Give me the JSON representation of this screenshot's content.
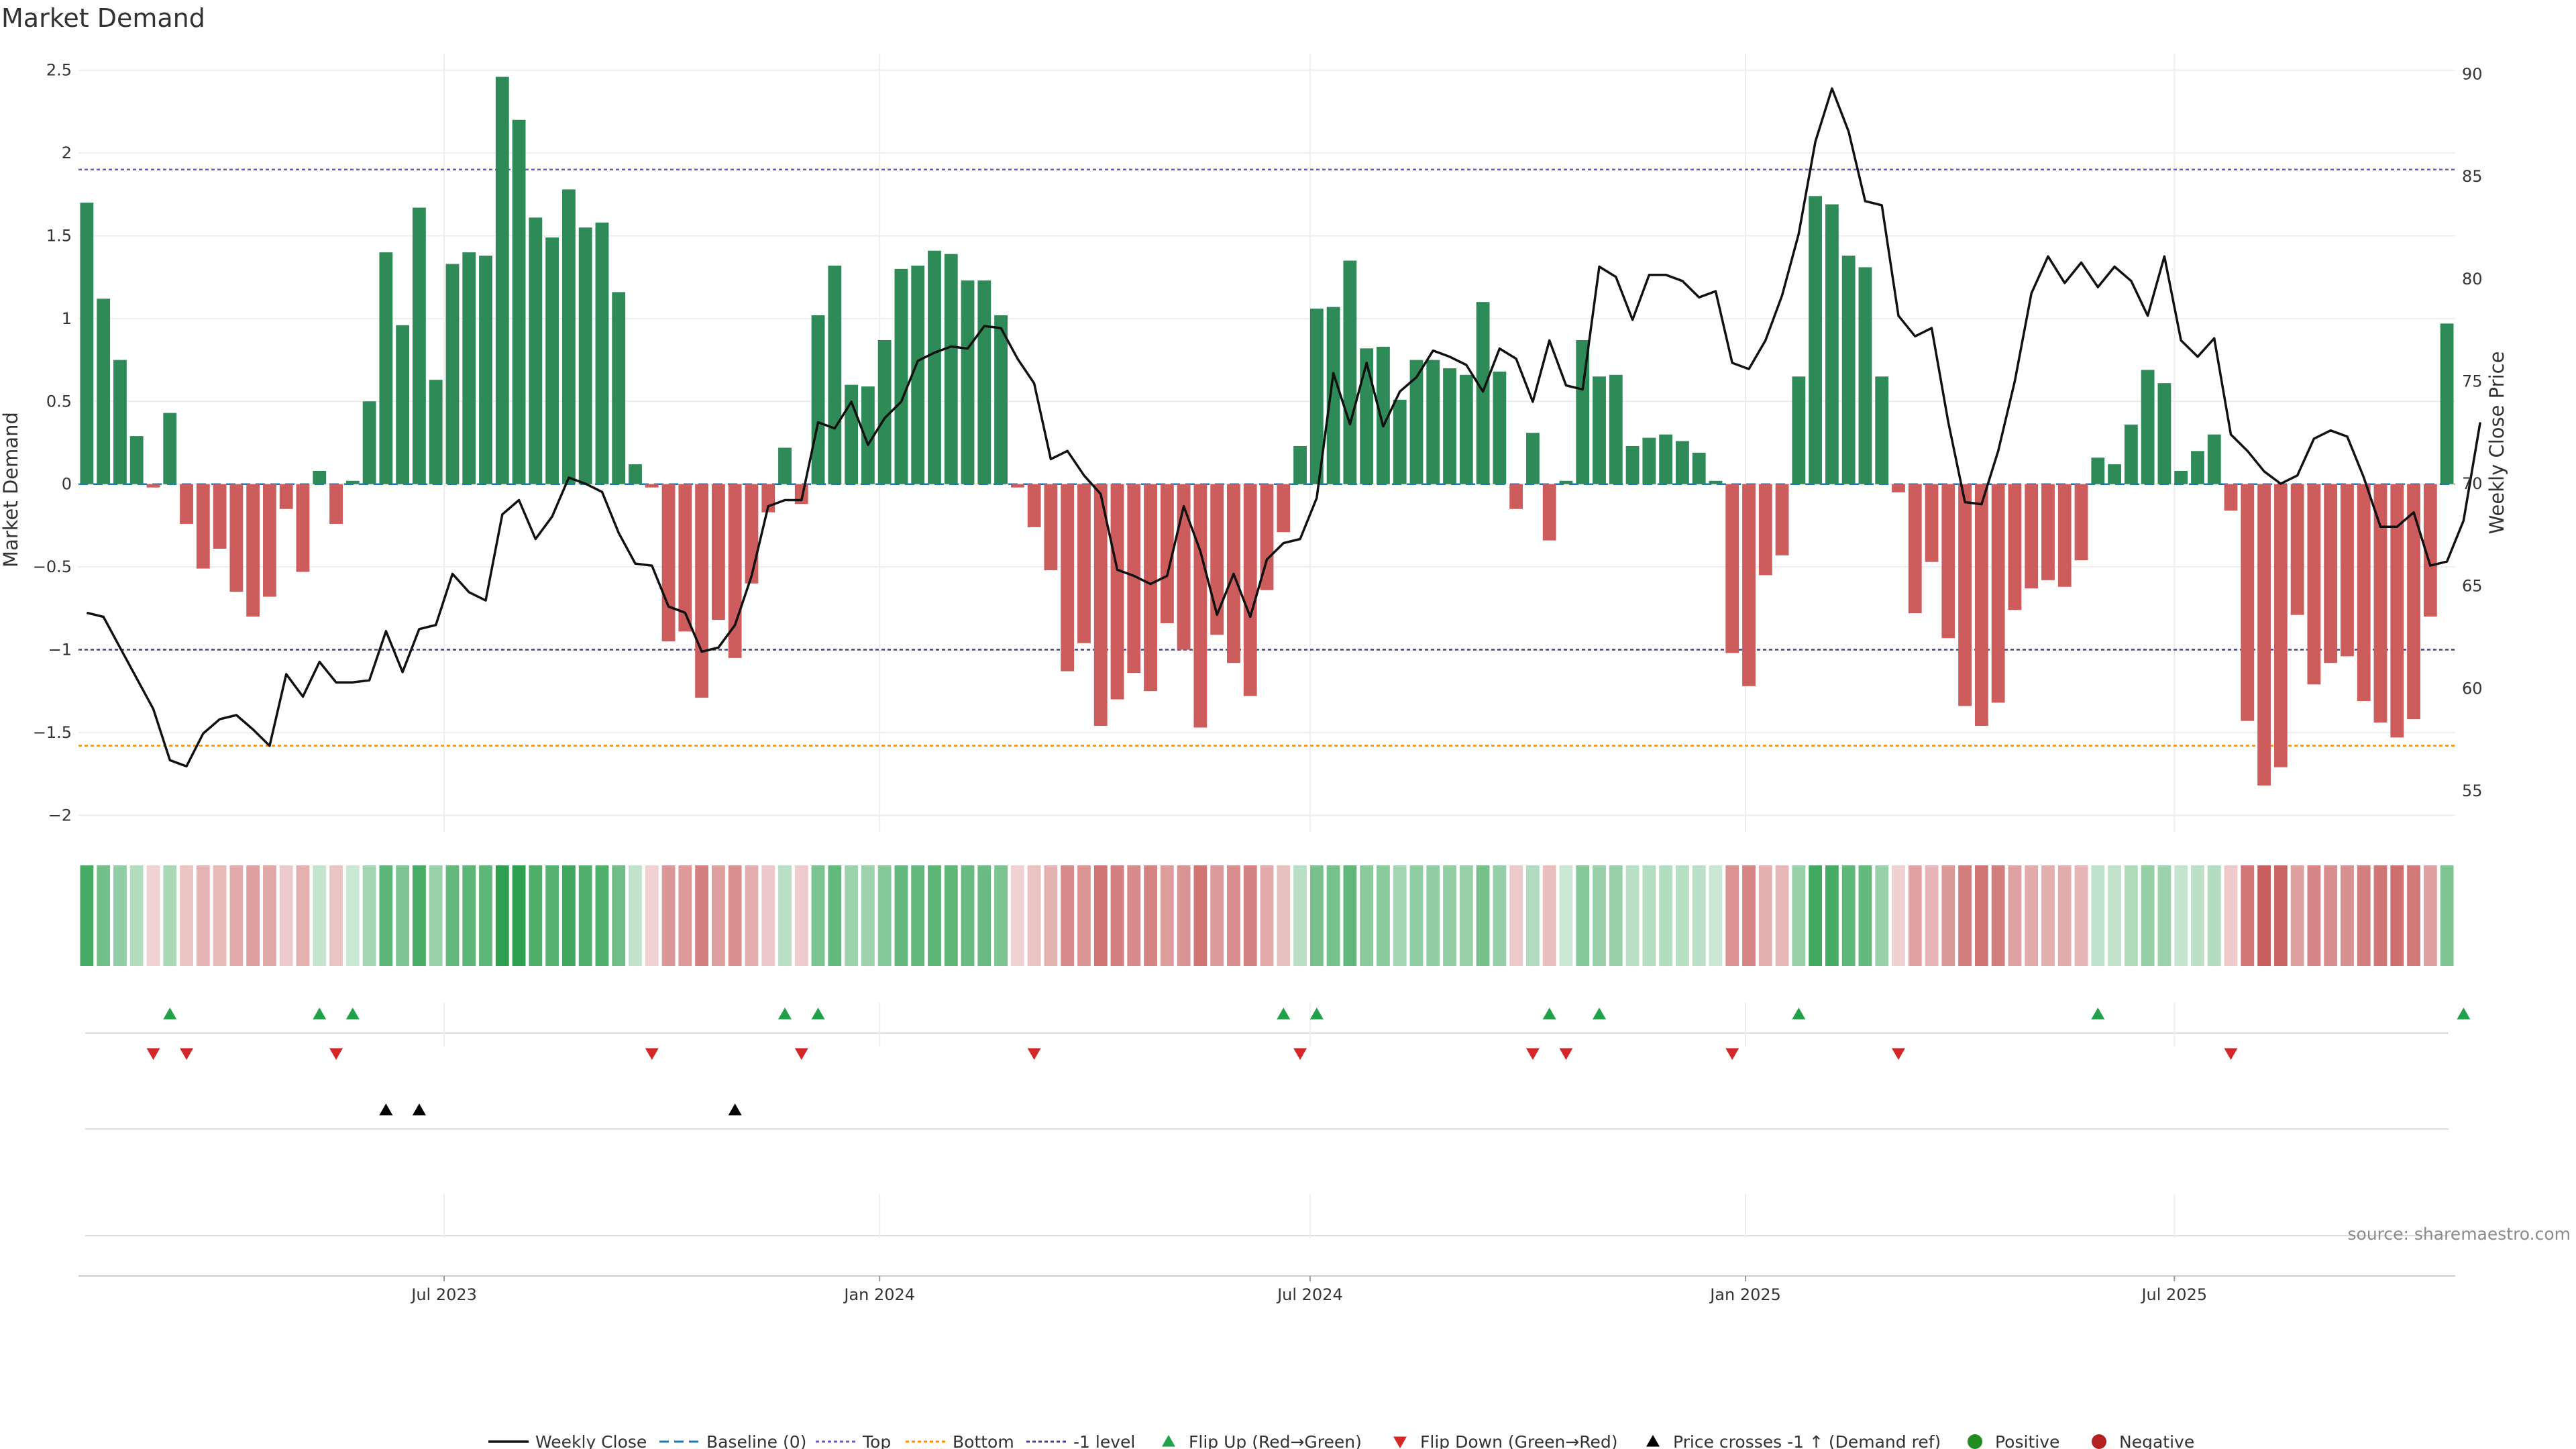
{
  "chart_data": {
    "type": "bar",
    "title": "Market Demand",
    "ylabel_left": "Market Demand",
    "ylabel_right": "Weekly Close Price",
    "ylim_left": [
      -2.1,
      2.6
    ],
    "ylim_right": [
      53,
      91
    ],
    "yticks_left": [
      2.5,
      2,
      1.5,
      1,
      0.5,
      0,
      -0.5,
      -1,
      -1.5,
      -2
    ],
    "ytick_labels_left": [
      "2.5",
      "2",
      "1.5",
      "1",
      "0.5",
      "0",
      "−0.5",
      "−1",
      "−1.5",
      "−2"
    ],
    "yticks_right": [
      90,
      85,
      80,
      75,
      70,
      65,
      60,
      55
    ],
    "ytick_labels_right": [
      "90",
      "85",
      "80",
      "75",
      "70",
      "65",
      "60",
      "55"
    ],
    "x_tick_labels": [
      {
        "label": "Jul 2023",
        "index": 21.5
      },
      {
        "label": "Jan 2024",
        "index": 47.7
      },
      {
        "label": "Jul 2024",
        "index": 73.6
      },
      {
        "label": "Jan 2025",
        "index": 99.8
      },
      {
        "label": "Jul 2025",
        "index": 125.6
      }
    ],
    "reference_lines": {
      "baseline": 0,
      "top": 1.9,
      "bottom": -1.58,
      "minus_one": -1.0
    },
    "demand": [
      1.7,
      1.12,
      0.75,
      0.29,
      -0.02,
      0.43,
      -0.24,
      -0.51,
      -0.39,
      -0.65,
      -0.8,
      -0.68,
      -0.15,
      -0.53,
      0.08,
      -0.24,
      0.02,
      0.5,
      1.4,
      0.96,
      1.67,
      0.63,
      1.33,
      1.4,
      1.38,
      2.46,
      2.2,
      1.61,
      1.49,
      1.78,
      1.55,
      1.58,
      1.16,
      0.12,
      -0.02,
      -0.95,
      -0.89,
      -1.29,
      -0.82,
      -1.05,
      -0.6,
      -0.17,
      0.22,
      -0.12,
      1.02,
      1.32,
      0.6,
      0.59,
      0.87,
      1.3,
      1.32,
      1.41,
      1.39,
      1.23,
      1.23,
      1.02,
      -0.02,
      -0.26,
      -0.52,
      -1.13,
      -0.96,
      -1.46,
      -1.3,
      -1.14,
      -1.25,
      -0.84,
      -1.0,
      -1.47,
      -0.91,
      -1.08,
      -1.28,
      -0.64,
      -0.29,
      0.23,
      1.06,
      1.07,
      1.35,
      0.82,
      0.83,
      0.51,
      0.75,
      0.75,
      0.7,
      0.66,
      1.1,
      0.68,
      -0.15,
      0.31,
      -0.34,
      0.02,
      0.87,
      0.65,
      0.66,
      0.23,
      0.28,
      0.3,
      0.26,
      0.19,
      0.02,
      -1.02,
      -1.22,
      -0.55,
      -0.43,
      0.65,
      1.74,
      1.69,
      1.38,
      1.31,
      0.65,
      -0.05,
      -0.78,
      -0.47,
      -0.93,
      -1.34,
      -1.46,
      -1.32,
      -0.76,
      -0.63,
      -0.58,
      -0.62,
      -0.46,
      0.16,
      0.12,
      0.36,
      0.69,
      0.61,
      0.08,
      0.2,
      0.3,
      -0.16,
      -1.43,
      -1.82,
      -1.71,
      -0.79,
      -1.21,
      -1.08,
      -1.04,
      -1.31,
      -1.44,
      -1.53,
      -1.42,
      -0.8,
      0.97
    ],
    "weekly_close": [
      63.7,
      63.5,
      62.0,
      60.5,
      59.0,
      56.5,
      56.2,
      57.8,
      58.5,
      58.7,
      58.0,
      57.2,
      60.7,
      59.6,
      61.3,
      60.3,
      60.3,
      60.4,
      62.8,
      60.8,
      62.9,
      63.1,
      65.6,
      64.7,
      64.3,
      68.5,
      69.2,
      67.3,
      68.4,
      70.3,
      70.0,
      69.6,
      67.6,
      66.1,
      66.0,
      64.0,
      63.7,
      61.8,
      62.0,
      63.1,
      65.5,
      68.9,
      69.2,
      69.2,
      73.0,
      72.7,
      74.0,
      71.9,
      73.2,
      74.0,
      76.0,
      76.4,
      76.7,
      76.6,
      77.7,
      77.6,
      76.1,
      74.9,
      71.2,
      71.6,
      70.4,
      69.5,
      65.8,
      65.5,
      65.1,
      65.5,
      68.9,
      66.7,
      63.6,
      65.6,
      63.5,
      66.3,
      67.1,
      67.3,
      69.3,
      75.4,
      72.9,
      75.9,
      72.8,
      74.5,
      75.2,
      76.5,
      76.2,
      75.8,
      74.5,
      76.6,
      76.1,
      74.0,
      77.0,
      74.8,
      74.6,
      80.6,
      80.1,
      78.0,
      80.2,
      80.2,
      79.9,
      79.1,
      79.4,
      75.9,
      75.6,
      77.0,
      79.2,
      82.2,
      86.7,
      89.3,
      87.2,
      83.8,
      83.6,
      78.2,
      77.2,
      77.6,
      73.0,
      69.1,
      69.0,
      71.6,
      75.0,
      79.3,
      81.1,
      79.8,
      80.8,
      79.6,
      80.6,
      79.9,
      78.2,
      81.1,
      77.0,
      76.2,
      77.1,
      72.4,
      71.6,
      70.6,
      70.0,
      70.4,
      72.2,
      72.6,
      72.3,
      70.3,
      67.9,
      67.9,
      68.6,
      66.0,
      66.2,
      68.2,
      73.0
    ],
    "flip_up_indices": [
      5,
      14,
      16,
      42,
      44,
      72,
      74,
      88,
      91,
      103,
      121,
      143
    ],
    "flip_down_indices": [
      4,
      6,
      15,
      34,
      43,
      57,
      73,
      87,
      89,
      99,
      109,
      129
    ],
    "price_cross_indices": [
      18,
      20,
      39
    ],
    "legend": [
      "Weekly Close",
      "Baseline (0)",
      "Top",
      "Bottom",
      "-1 level",
      "Flip Up (Red→Green)",
      "Flip Down (Green→Red)",
      "Price crosses -1 ↑ (Demand ref)",
      "Positive",
      "Negative"
    ],
    "legend_position": "bottom-center",
    "colors": {
      "positive_bar": "#2e8b57",
      "negative_bar": "#cd5c5c",
      "price_line": "#111111",
      "baseline": "#1f77b4",
      "top_line": "#6a5acd",
      "bottom_line": "#ff8c00",
      "minus_one_line": "#483d8b",
      "flip_up": "#22a04a",
      "flip_down": "#d62728",
      "price_cross": "#000000",
      "positive_dot": "#228b22",
      "negative_dot": "#b22222"
    }
  },
  "source_note": "source: sharemaestro.com"
}
